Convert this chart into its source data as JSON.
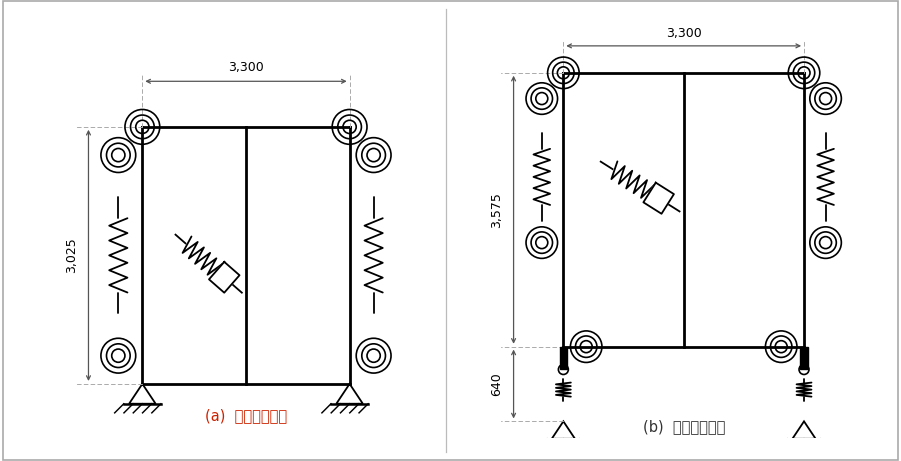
{
  "fig_width": 9.01,
  "fig_height": 4.61,
  "bg_color": "#ffffff",
  "line_color": "#000000",
  "dim_color": "#888888",
  "label_color_a": "#cc2200",
  "label_color_b": "#333333",
  "label_a": "(a)  정적응답해석",
  "label_b": "(b)  동적응답해석",
  "dim_3300": "3,300",
  "dim_3025": "3,025",
  "dim_3575": "3,575",
  "dim_640": "640"
}
